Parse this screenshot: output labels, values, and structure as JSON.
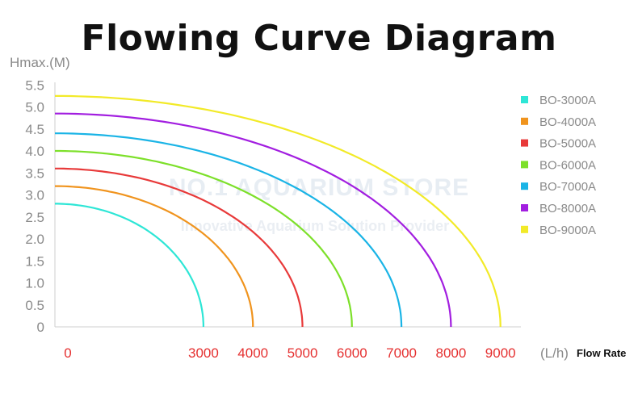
{
  "title": "Flowing Curve Diagram",
  "watermark": {
    "line1": "NO.1 AQUARIUM STORE",
    "line2": "Innovative Aquarium Solution Provider"
  },
  "chart_data": {
    "type": "line",
    "title": "Flowing Curve Diagram",
    "ylabel": "Hmax.(M)",
    "xunit": "(L/h)",
    "xlabel": "Flow Rate",
    "ylim": [
      0,
      5.5
    ],
    "xlim": [
      0,
      9000
    ],
    "yticks": [
      "5.5",
      "5.0",
      "4.5",
      "4.0",
      "3.5",
      "3.0",
      "2.5",
      "2.0",
      "1.5",
      "1.0",
      "0.5",
      "0"
    ],
    "xticks": [
      "0",
      "3000",
      "4000",
      "5000",
      "6000",
      "7000",
      "8000",
      "9000"
    ],
    "legend_position": "top-right",
    "grid": false,
    "series": [
      {
        "name": "BO-3000A",
        "color": "#2ee6d6",
        "max_flow": 3000,
        "max_head": 2.8
      },
      {
        "name": "BO-4000A",
        "color": "#f0941e",
        "max_flow": 4000,
        "max_head": 3.2
      },
      {
        "name": "BO-5000A",
        "color": "#e83a3a",
        "max_flow": 5000,
        "max_head": 3.6
      },
      {
        "name": "BO-6000A",
        "color": "#7de02a",
        "max_flow": 6000,
        "max_head": 4.0
      },
      {
        "name": "BO-7000A",
        "color": "#1ab4e6",
        "max_flow": 7000,
        "max_head": 4.4
      },
      {
        "name": "BO-8000A",
        "color": "#a21ee0",
        "max_flow": 8000,
        "max_head": 4.85
      },
      {
        "name": "BO-9000A",
        "color": "#f2ea28",
        "max_flow": 9000,
        "max_head": 5.25
      }
    ]
  }
}
